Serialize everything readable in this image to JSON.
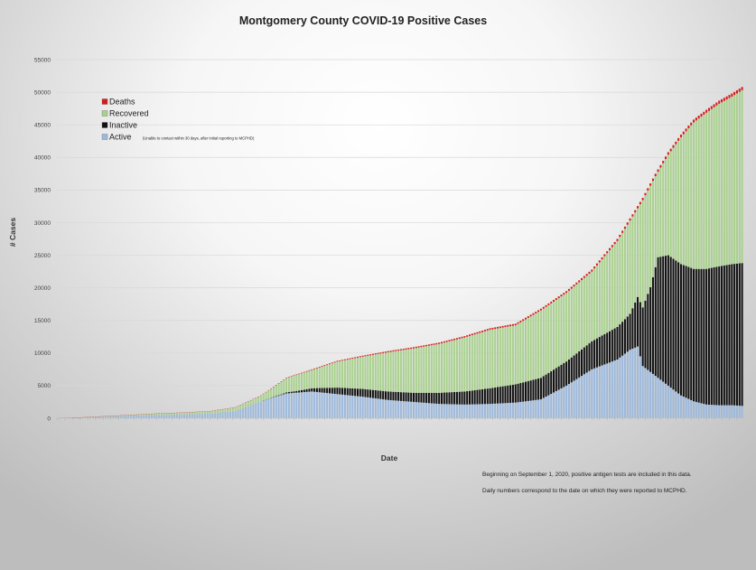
{
  "chart_data": {
    "type": "bar",
    "stacked": true,
    "title": "Montgomery County COVID-19 Positive Cases",
    "xlabel": "Date",
    "ylabel": "# Cases",
    "ylim": [
      0,
      55000
    ],
    "yticks": [
      0,
      5000,
      10000,
      15000,
      20000,
      25000,
      30000,
      35000,
      40000,
      45000,
      50000,
      55000
    ],
    "grid": true,
    "legend_position": "top-left",
    "legend": [
      {
        "series": "Deaths",
        "label": "Deaths",
        "color": "#d7191c",
        "note": ""
      },
      {
        "series": "Recovered",
        "label": "Recovered",
        "color": "#a9d18e",
        "note": ""
      },
      {
        "series": "Inactive",
        "label": "Inactive",
        "color": "#111111",
        "note": "(Unable to contact within 30 days, after initial reporting to MCPHD)"
      },
      {
        "series": "Active",
        "label": "Active",
        "color": "#9db9dc",
        "note": ""
      }
    ],
    "stack_order": [
      "Active",
      "Inactive",
      "Recovered",
      "Deaths"
    ],
    "x_labels_note": "date tick labels too small to read",
    "anchors": {
      "total": [
        [
          0,
          30
        ],
        [
          10,
          150
        ],
        [
          20,
          350
        ],
        [
          30,
          550
        ],
        [
          40,
          750
        ],
        [
          50,
          900
        ],
        [
          60,
          1100
        ],
        [
          70,
          1700
        ],
        [
          80,
          3500
        ],
        [
          90,
          6200
        ],
        [
          100,
          7500
        ],
        [
          110,
          8800
        ],
        [
          120,
          9600
        ],
        [
          130,
          10300
        ],
        [
          140,
          10900
        ],
        [
          150,
          11600
        ],
        [
          160,
          12600
        ],
        [
          170,
          13800
        ],
        [
          180,
          14500
        ],
        [
          190,
          16800
        ],
        [
          200,
          19500
        ],
        [
          210,
          22800
        ],
        [
          220,
          27500
        ],
        [
          230,
          33800
        ],
        [
          235,
          37500
        ],
        [
          240,
          40800
        ],
        [
          245,
          43500
        ],
        [
          250,
          45800
        ],
        [
          255,
          47300
        ],
        [
          260,
          48700
        ],
        [
          265,
          49800
        ],
        [
          269,
          50800
        ]
      ],
      "active": [
        [
          0,
          20
        ],
        [
          10,
          100
        ],
        [
          20,
          250
        ],
        [
          30,
          400
        ],
        [
          40,
          500
        ],
        [
          50,
          600
        ],
        [
          60,
          700
        ],
        [
          70,
          1100
        ],
        [
          80,
          2600
        ],
        [
          90,
          3800
        ],
        [
          100,
          4100
        ],
        [
          110,
          3700
        ],
        [
          120,
          3300
        ],
        [
          130,
          2800
        ],
        [
          140,
          2500
        ],
        [
          150,
          2200
        ],
        [
          160,
          2100
        ],
        [
          170,
          2200
        ],
        [
          180,
          2400
        ],
        [
          190,
          2900
        ],
        [
          200,
          5000
        ],
        [
          210,
          7500
        ],
        [
          220,
          9000
        ],
        [
          225,
          10500
        ],
        [
          228,
          11000
        ],
        [
          230,
          8000
        ],
        [
          235,
          6500
        ],
        [
          240,
          5000
        ],
        [
          245,
          3500
        ],
        [
          250,
          2600
        ],
        [
          255,
          2100
        ],
        [
          260,
          2000
        ],
        [
          265,
          2000
        ],
        [
          269,
          1900
        ]
      ],
      "inactive": [
        [
          0,
          0
        ],
        [
          60,
          0
        ],
        [
          80,
          0
        ],
        [
          88,
          100
        ],
        [
          95,
          300
        ],
        [
          100,
          500
        ],
        [
          110,
          1000
        ],
        [
          120,
          1200
        ],
        [
          140,
          1400
        ],
        [
          160,
          2000
        ],
        [
          170,
          2400
        ],
        [
          180,
          2800
        ],
        [
          190,
          3300
        ],
        [
          200,
          3700
        ],
        [
          210,
          4300
        ],
        [
          220,
          5000
        ],
        [
          225,
          5500
        ],
        [
          230,
          9000
        ],
        [
          233,
          13000
        ],
        [
          236,
          18500
        ],
        [
          240,
          20000
        ],
        [
          250,
          20300
        ],
        [
          260,
          21300
        ],
        [
          269,
          21900
        ]
      ],
      "deaths": [
        [
          0,
          0
        ],
        [
          40,
          20
        ],
        [
          80,
          50
        ],
        [
          100,
          100
        ],
        [
          130,
          180
        ],
        [
          160,
          220
        ],
        [
          200,
          280
        ],
        [
          230,
          350
        ],
        [
          269,
          500
        ]
      ]
    },
    "bar_count": 270,
    "notes": [
      "Beginning on September 1, 2020, positive antigen tests are included in this data.",
      "Daily numbers correspond to the date on which they were reported to MCPHD."
    ]
  }
}
